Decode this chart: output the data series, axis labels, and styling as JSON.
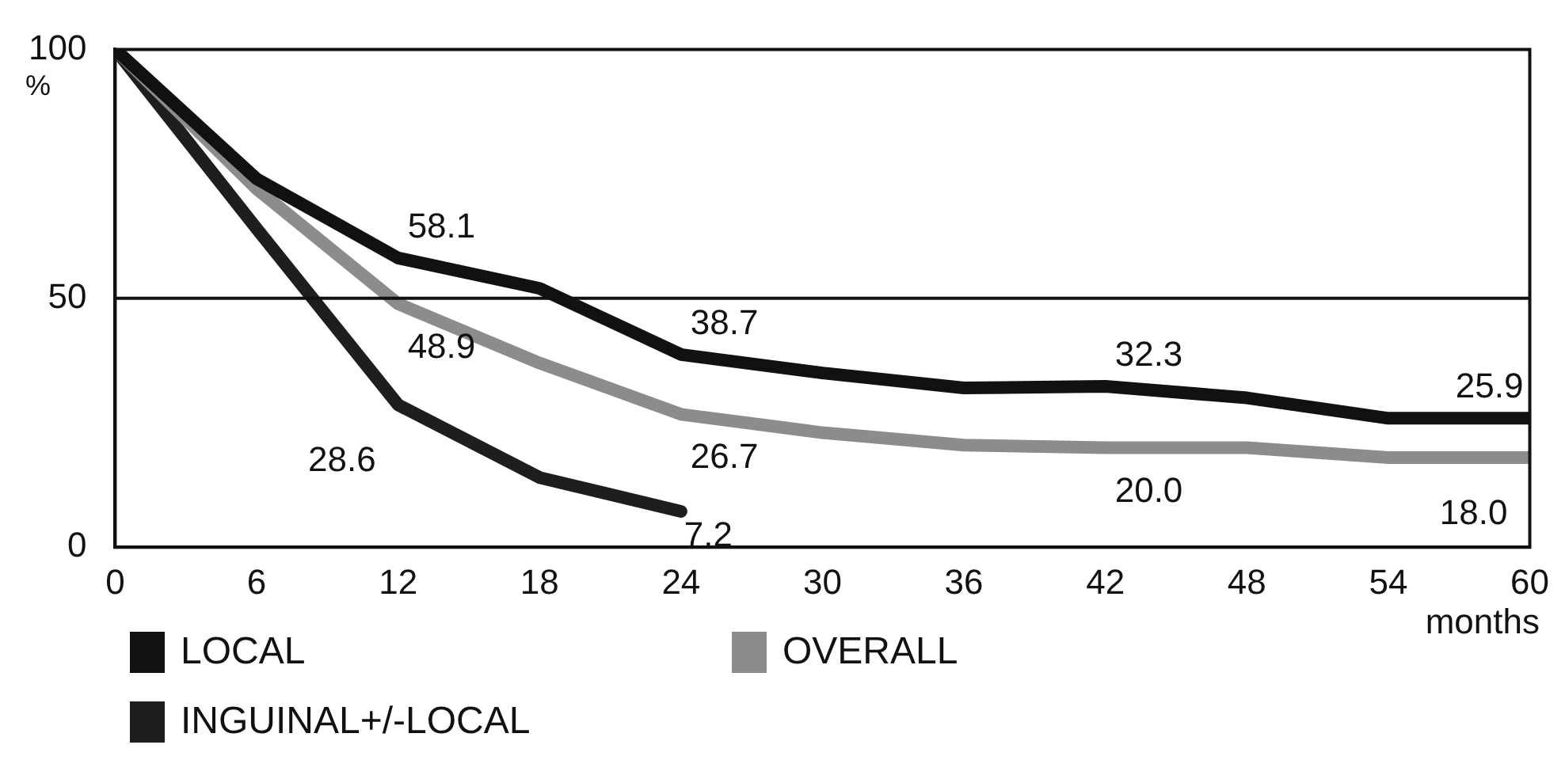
{
  "chart_data": {
    "type": "line",
    "xlabel": "months",
    "ylabel": "%",
    "x": [
      0,
      6,
      12,
      18,
      24,
      30,
      36,
      42,
      48,
      54,
      60
    ],
    "series": [
      {
        "name": "LOCAL",
        "color": "#111111",
        "values": [
          100,
          74,
          58.1,
          52,
          38.7,
          35,
          32,
          32.3,
          30,
          25.9,
          25.9
        ]
      },
      {
        "name": "OVERALL",
        "color": "#8c8c8c",
        "values": [
          100,
          72,
          48.9,
          37,
          26.7,
          23,
          20.5,
          20.0,
          20,
          18.0,
          18.0
        ]
      },
      {
        "name": "INGUINAL+/-LOCAL",
        "color": "#1e1e1e",
        "values": [
          100,
          64,
          28.6,
          14,
          7.2,
          null,
          null,
          null,
          null,
          null,
          null
        ]
      }
    ],
    "xlim": [
      0,
      60
    ],
    "xticks": [
      0,
      6,
      12,
      18,
      24,
      30,
      36,
      42,
      48,
      54,
      60
    ],
    "ylim": [
      0,
      100
    ],
    "yticks": [
      0,
      50,
      100
    ],
    "ref_lines": [
      {
        "axis": "y",
        "value": 50,
        "color": "#111111"
      }
    ],
    "annotations": [
      {
        "text": "58.1",
        "x": 12,
        "y": 58.1
      },
      {
        "text": "38.7",
        "x": 24,
        "y": 38.7
      },
      {
        "text": "32.3",
        "x": 42,
        "y": 32.3
      },
      {
        "text": "25.9",
        "x": 60,
        "y": 25.9
      },
      {
        "text": "48.9",
        "x": 12,
        "y": 48.9
      },
      {
        "text": "26.7",
        "x": 24,
        "y": 26.7
      },
      {
        "text": "20.0",
        "x": 42,
        "y": 20.0
      },
      {
        "text": "18.0",
        "x": 60,
        "y": 18.0
      },
      {
        "text": "28.6",
        "x": 12,
        "y": 28.6
      },
      {
        "text": "7.2",
        "x": 24,
        "y": 7.2
      }
    ],
    "grid": false,
    "legend": "bottom left",
    "marker": "none",
    "line_style": "solid"
  }
}
